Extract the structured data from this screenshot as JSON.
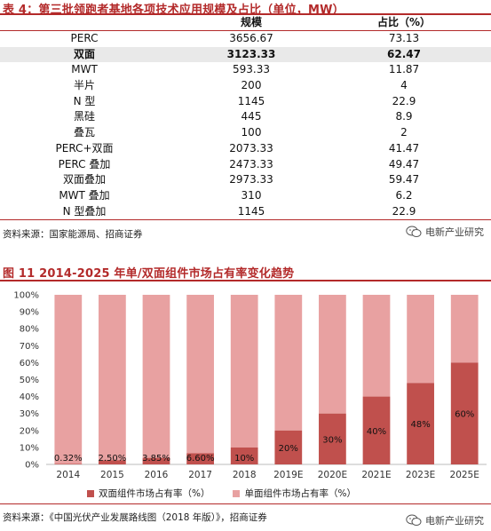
{
  "table": {
    "title": "表 4：第三批领跑者基地各项技术应用规模及占比（单位，MW）",
    "headers": [
      "",
      "规模",
      "占比（%）"
    ],
    "rows": [
      {
        "name": "PERC",
        "scale": "3656.67",
        "share": "73.13"
      },
      {
        "name": "双面",
        "scale": "3123.33",
        "share": "62.47",
        "highlight": true
      },
      {
        "name": "MWT",
        "scale": "593.33",
        "share": "11.87"
      },
      {
        "name": "半片",
        "scale": "200",
        "share": "4"
      },
      {
        "name": "N 型",
        "scale": "1145",
        "share": "22.9"
      },
      {
        "name": "黑硅",
        "scale": "445",
        "share": "8.9"
      },
      {
        "name": "叠瓦",
        "scale": "100",
        "share": "2"
      },
      {
        "name": "PERC+双面",
        "scale": "2073.33",
        "share": "41.47"
      },
      {
        "name": "PERC 叠加",
        "scale": "2473.33",
        "share": "49.47"
      },
      {
        "name": "双面叠加",
        "scale": "2973.33",
        "share": "59.47"
      },
      {
        "name": "MWT 叠加",
        "scale": "310",
        "share": "6.2"
      },
      {
        "name": "N 型叠加",
        "scale": "1145",
        "share": "22.9"
      }
    ],
    "source": "资料来源：国家能源局、招商证券"
  },
  "watermark": {
    "text": "电新产业研究",
    "icon": "wechat-icon"
  },
  "chart": {
    "title": "图 11 2014-2025 年单/双面组件市场占有率变化趋势",
    "source": "资料来源：《中国光伏产业发展路线图（2018 年版）》，招商证券",
    "colors": {
      "bifacial": "#c0504d",
      "mono": "#e8a1a1",
      "title": "#b32a2a"
    }
  },
  "chart_data": {
    "type": "bar",
    "stacked": true,
    "categories": [
      "2014",
      "2015",
      "2016",
      "2017",
      "2018",
      "2019E",
      "2020E",
      "2021E",
      "2023E",
      "2025E"
    ],
    "series": [
      {
        "name": "双面组件市场占有率（%）",
        "values": [
          0.32,
          2.5,
          3.85,
          6.6,
          10,
          20,
          30,
          40,
          48,
          60
        ],
        "labels": [
          "0.32%",
          "2.50%",
          "3.85%",
          "6.60%",
          "10%",
          "20%",
          "30%",
          "40%",
          "48%",
          "60%"
        ]
      },
      {
        "name": "单面组件市场占有率（%）",
        "values": [
          99.68,
          97.5,
          96.15,
          93.4,
          90,
          80,
          70,
          60,
          52,
          40
        ]
      }
    ],
    "yticks": [
      "0%",
      "10%",
      "20%",
      "30%",
      "40%",
      "50%",
      "60%",
      "70%",
      "80%",
      "90%",
      "100%"
    ],
    "ylim": [
      0,
      100
    ]
  }
}
